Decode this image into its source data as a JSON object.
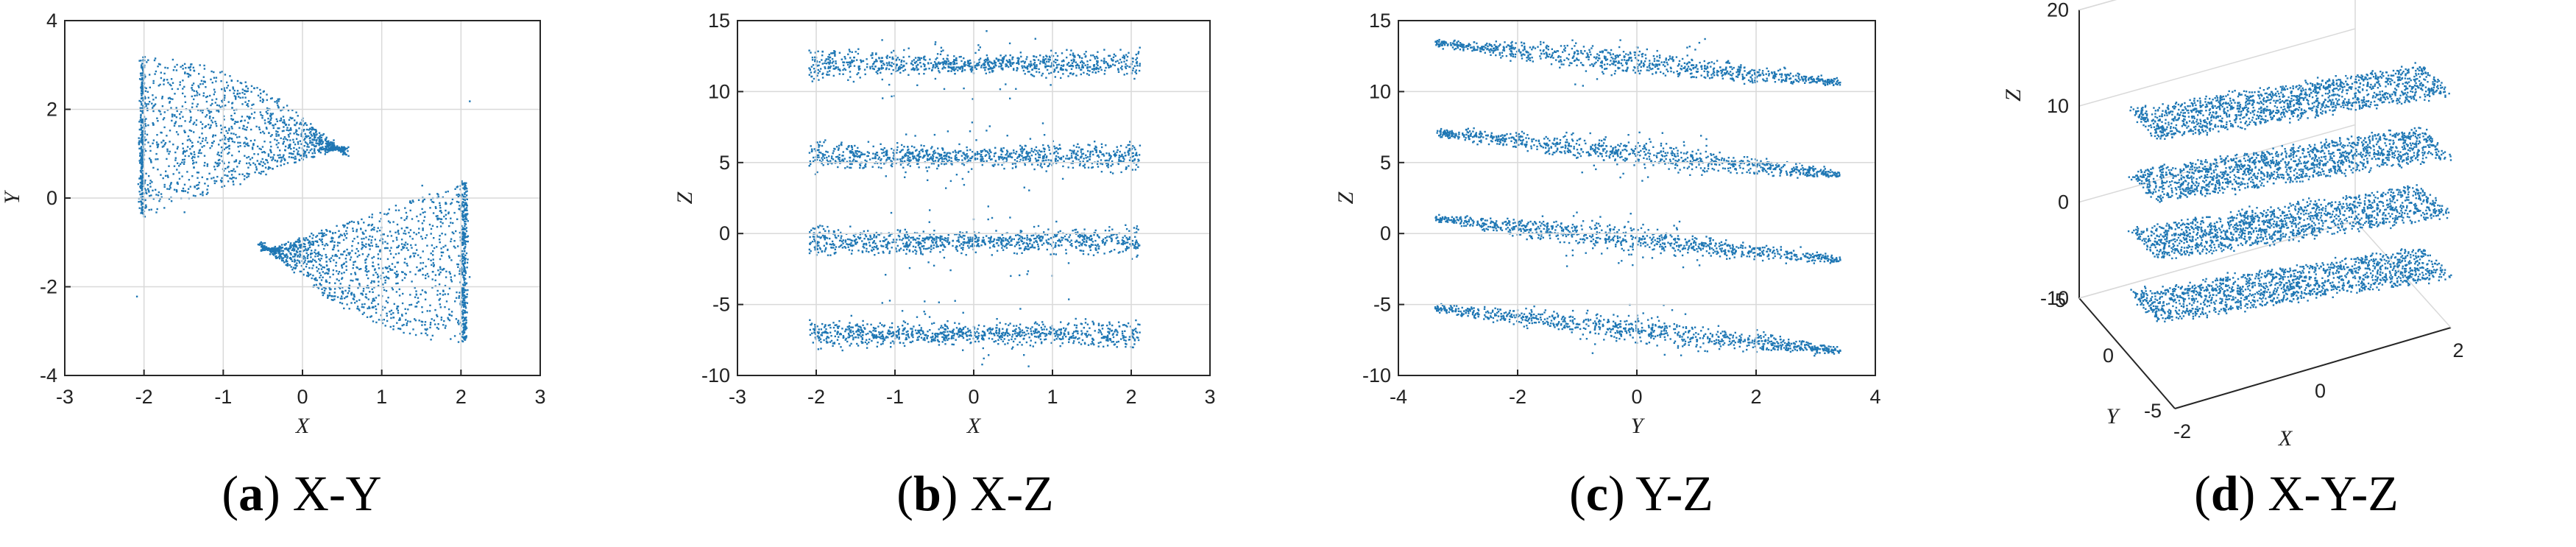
{
  "chart_data": [
    {
      "type": "scatter",
      "caption_letter": "a",
      "caption_text": "X-Y",
      "xlabel": "X",
      "ylabel": "Y",
      "xlim": [
        -3,
        3
      ],
      "ylim": [
        -4,
        4
      ],
      "xticks": [
        "-3",
        "-2",
        "-1",
        "0",
        "1",
        "2",
        "3"
      ],
      "yticks": [
        "-4",
        "-2",
        "0",
        "2",
        "4"
      ],
      "grid": true,
      "color": "#1f77b4",
      "series": [
        {
          "projection": "x-y",
          "points": [
            [
              -2.0,
              3.2
            ],
            [
              -1.6,
              2.9
            ],
            [
              -1.0,
              2.5
            ],
            [
              -0.4,
              1.9
            ],
            [
              0.2,
              1.3
            ],
            [
              0.5,
              1.0
            ],
            [
              -2.0,
              -0.4
            ],
            [
              -1.6,
              0.2
            ],
            [
              -1.0,
              0.8
            ],
            [
              0.0,
              -0.9
            ],
            [
              0.9,
              -1.6
            ],
            [
              1.6,
              -2.4
            ],
            [
              2.0,
              -3.2
            ],
            [
              1.6,
              -2.9
            ],
            [
              1.0,
              -2.5
            ],
            [
              0.4,
              -1.9
            ],
            [
              -0.2,
              -1.3
            ],
            [
              2.0,
              0.4
            ],
            [
              1.6,
              -0.2
            ],
            [
              1.0,
              -0.8
            ],
            [
              -1.5,
              -0.3
            ],
            [
              1.5,
              0.3
            ],
            [
              -2.1,
              -2.2
            ],
            [
              2.1,
              2.2
            ]
          ]
        }
      ]
    },
    {
      "type": "scatter",
      "caption_letter": "b",
      "caption_text": "X-Z",
      "xlabel": "X",
      "ylabel": "Z",
      "xlim": [
        -3,
        3
      ],
      "ylim": [
        -10,
        15
      ],
      "xticks": [
        "-3",
        "-2",
        "-1",
        "0",
        "1",
        "2",
        "3"
      ],
      "yticks": [
        "-10",
        "-5",
        "0",
        "5",
        "10",
        "15"
      ],
      "grid": true,
      "color": "#1f77b4",
      "series": [
        {
          "projection": "x-z",
          "bands_z_center": [
            12,
            5.5,
            -0.5,
            -7
          ],
          "x_span": [
            -2.1,
            2.1
          ]
        }
      ]
    },
    {
      "type": "scatter",
      "caption_letter": "c",
      "caption_text": "Y-Z",
      "xlabel": "Y",
      "ylabel": "Z",
      "xlim": [
        -4,
        4
      ],
      "ylim": [
        -10,
        15
      ],
      "xticks": [
        "-4",
        "-2",
        "0",
        "2",
        "4"
      ],
      "yticks": [
        "-10",
        "-5",
        "0",
        "5",
        "10",
        "15"
      ],
      "grid": true,
      "color": "#1f77b4",
      "series": [
        {
          "projection": "y-z",
          "bands": [
            [
              -3.4,
              13.5,
              3.4,
              10.7
            ],
            [
              -3.4,
              7.2,
              3.4,
              4.2
            ],
            [
              -3.4,
              1.1,
              3.4,
              -1.8
            ],
            [
              -3.4,
              -5.2,
              3.4,
              -8.2
            ]
          ]
        }
      ]
    },
    {
      "type": "scatter",
      "caption_letter": "d",
      "caption_text": "X-Y-Z",
      "xlabel": "X",
      "ylabel": "Y",
      "zlabel": "Z",
      "xticks": [
        "-2",
        "0",
        "2"
      ],
      "yticks": [
        "-5",
        "0",
        "5"
      ],
      "zticks": [
        "-10",
        "0",
        "10",
        "20"
      ],
      "grid": true,
      "color": "#1f77b4",
      "series": [
        {
          "projection": "x-y-z",
          "layers_z": [
            12,
            5.5,
            -0.5,
            -7
          ]
        }
      ]
    }
  ]
}
